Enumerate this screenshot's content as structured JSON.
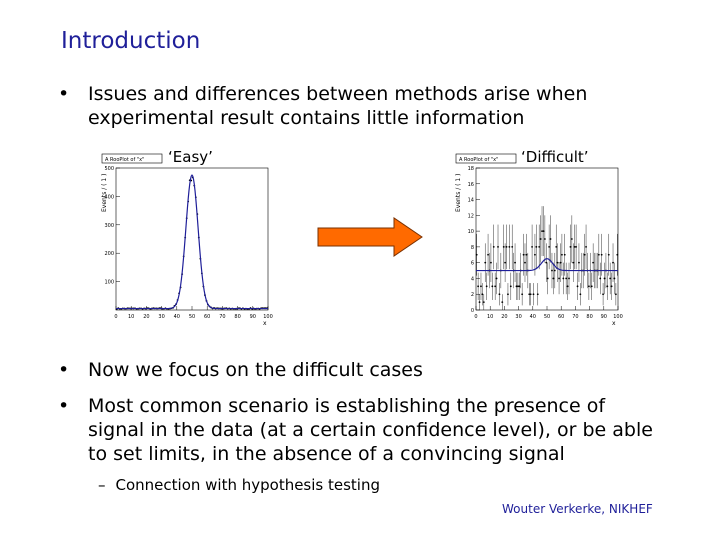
{
  "slide": {
    "title": "Introduction",
    "bullet_char": "•",
    "bullet1": "Issues and differences between methods arise when experimental result contains little information",
    "caption_easy": "‘Easy’",
    "caption_difficult": "‘Difficult’",
    "bullet2": "Now we focus on the difficult cases",
    "bullet3": "Most common scenario is establishing the presence of signal in the data (at a certain confidence level), or be able to set limits, in the absence of a convincing signal",
    "sub_dash": "–",
    "sub_bullet": "Connection with hypothesis testing",
    "footer": "Wouter Verkerke, NIKHEF",
    "colors": {
      "title": "#1f1f99",
      "arrow": "#ff6a00",
      "curve": "#1f1f99"
    }
  },
  "chart_data": [
    {
      "type": "scatter",
      "title": "A RooPlot of \"x\"",
      "ylabel": "Events / ( 1 )",
      "xlabel": "x",
      "xlim": [
        0,
        100
      ],
      "ylim": [
        0,
        500
      ],
      "x_ticks": [
        "0",
        "10",
        "20",
        "30",
        "40",
        "50",
        "60",
        "70",
        "80",
        "90",
        "100"
      ],
      "y_ticks": [
        "100",
        "200",
        "300",
        "400",
        "500"
      ],
      "description": "Gaussian peak at x=50 with width ~4 on flat background ~5 events/bin",
      "fit_curve": "gaussian+flat",
      "peak": {
        "mean": 50,
        "sigma": 4,
        "amplitude": 470,
        "background": 5
      }
    },
    {
      "type": "scatter",
      "title": "A RooPlot of \"x\"",
      "ylabel": "Events / ( 1 )",
      "xlabel": "x",
      "xlim": [
        0,
        100
      ],
      "ylim": [
        0,
        18
      ],
      "x_ticks": [
        "0",
        "10",
        "20",
        "30",
        "40",
        "50",
        "60",
        "70",
        "80",
        "90",
        "100"
      ],
      "y_ticks": [
        "0",
        "2",
        "4",
        "6",
        "8",
        "10",
        "12",
        "14",
        "16",
        "18"
      ],
      "description": "Low statistics data scattered around ~5 events/bin, small bump near x=50",
      "fit_curve": "gaussian+flat",
      "peak": {
        "mean": 50,
        "sigma": 4,
        "amplitude": 1.5,
        "background": 5
      }
    }
  ]
}
